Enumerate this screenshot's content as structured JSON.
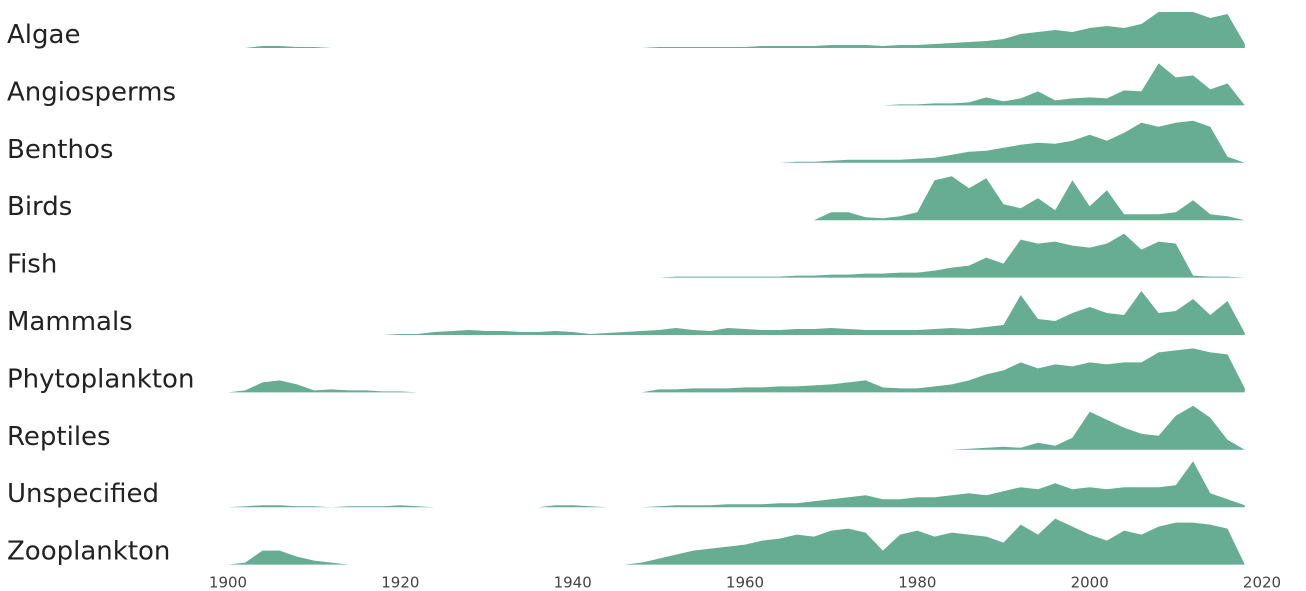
{
  "chart_data": {
    "type": "ridgeline",
    "color": "#66ad93",
    "xlim": [
      1900,
      2020
    ],
    "xticks": [
      1900,
      1920,
      1940,
      1960,
      1980,
      2000,
      2020
    ],
    "ylim": [
      0,
      50
    ],
    "x": [
      1898,
      1900,
      1902,
      1904,
      1906,
      1908,
      1910,
      1912,
      1914,
      1916,
      1918,
      1920,
      1922,
      1924,
      1926,
      1928,
      1930,
      1932,
      1934,
      1936,
      1938,
      1940,
      1942,
      1944,
      1946,
      1948,
      1950,
      1952,
      1954,
      1956,
      1958,
      1960,
      1962,
      1964,
      1966,
      1968,
      1970,
      1972,
      1974,
      1976,
      1978,
      1980,
      1982,
      1984,
      1986,
      1988,
      1990,
      1992,
      1994,
      1996,
      1998,
      2000,
      2002,
      2004,
      2006,
      2008,
      2010,
      2012,
      2014,
      2016,
      2018
    ],
    "series": [
      {
        "name": "Algae",
        "values": [
          0,
          0,
          0,
          2,
          2,
          1,
          1,
          0,
          0,
          0,
          0,
          0,
          0,
          0,
          0,
          0,
          0,
          0,
          0,
          0,
          0,
          0,
          0,
          0,
          0,
          0,
          1,
          1,
          1,
          1,
          1,
          1,
          2,
          2,
          2,
          2,
          3,
          3,
          3,
          2,
          3,
          3,
          4,
          5,
          6,
          7,
          9,
          14,
          16,
          18,
          16,
          20,
          22,
          20,
          24,
          36,
          36,
          36,
          30,
          34,
          4
        ]
      },
      {
        "name": "Angiosperms",
        "values": [
          0,
          0,
          0,
          0,
          0,
          0,
          0,
          0,
          0,
          0,
          0,
          0,
          0,
          0,
          0,
          0,
          0,
          0,
          0,
          0,
          0,
          0,
          0,
          0,
          0,
          0,
          0,
          0,
          0,
          0,
          0,
          0,
          0,
          0,
          0,
          0,
          0,
          0,
          0,
          0,
          1,
          1,
          2,
          2,
          3,
          8,
          4,
          7,
          14,
          5,
          7,
          8,
          7,
          15,
          14,
          42,
          28,
          30,
          16,
          22,
          0
        ]
      },
      {
        "name": "Benthos",
        "values": [
          0,
          0,
          0,
          0,
          0,
          0,
          0,
          0,
          0,
          0,
          0,
          0,
          0,
          0,
          0,
          0,
          0,
          0,
          0,
          0,
          0,
          0,
          0,
          0,
          0,
          0,
          0,
          0,
          0,
          0,
          0,
          0,
          0,
          0,
          1,
          1,
          2,
          3,
          3,
          3,
          3,
          4,
          5,
          8,
          11,
          12,
          15,
          18,
          20,
          19,
          22,
          28,
          22,
          30,
          40,
          36,
          40,
          42,
          36,
          6,
          0
        ]
      },
      {
        "name": "Birds",
        "values": [
          0,
          0,
          0,
          0,
          0,
          0,
          0,
          0,
          0,
          0,
          0,
          0,
          0,
          0,
          0,
          0,
          0,
          0,
          0,
          0,
          0,
          0,
          0,
          0,
          0,
          0,
          0,
          0,
          0,
          0,
          0,
          0,
          0,
          0,
          0,
          0,
          8,
          8,
          3,
          2,
          4,
          8,
          40,
          44,
          32,
          42,
          16,
          12,
          22,
          10,
          40,
          14,
          30,
          6,
          6,
          6,
          8,
          20,
          6,
          4,
          0
        ]
      },
      {
        "name": "Fish",
        "values": [
          0,
          0,
          0,
          0,
          0,
          0,
          0,
          0,
          0,
          0,
          0,
          0,
          0,
          0,
          0,
          0,
          0,
          0,
          0,
          0,
          0,
          0,
          0,
          0,
          0,
          0,
          0,
          1,
          1,
          1,
          1,
          1,
          1,
          1,
          2,
          2,
          3,
          3,
          4,
          4,
          5,
          5,
          7,
          10,
          12,
          20,
          14,
          38,
          34,
          36,
          32,
          30,
          34,
          44,
          28,
          36,
          34,
          2,
          1,
          1,
          0
        ]
      },
      {
        "name": "Mammals",
        "values": [
          0,
          0,
          0,
          0,
          0,
          0,
          0,
          0,
          0,
          0,
          0,
          1,
          1,
          3,
          4,
          5,
          4,
          4,
          3,
          3,
          4,
          3,
          1,
          2,
          3,
          4,
          5,
          7,
          5,
          4,
          7,
          6,
          5,
          5,
          6,
          6,
          7,
          6,
          5,
          5,
          5,
          5,
          6,
          7,
          6,
          8,
          10,
          40,
          16,
          14,
          22,
          28,
          22,
          20,
          44,
          22,
          24,
          36,
          20,
          34,
          2
        ]
      },
      {
        "name": "Phytoplankton",
        "values": [
          0,
          0,
          2,
          10,
          12,
          8,
          2,
          3,
          2,
          2,
          1,
          1,
          0,
          0,
          0,
          0,
          0,
          0,
          0,
          0,
          0,
          0,
          0,
          0,
          0,
          0,
          3,
          3,
          4,
          4,
          4,
          5,
          5,
          6,
          6,
          7,
          8,
          10,
          12,
          5,
          4,
          4,
          6,
          8,
          12,
          18,
          22,
          30,
          24,
          28,
          26,
          30,
          28,
          30,
          30,
          40,
          42,
          44,
          40,
          38,
          4
        ]
      },
      {
        "name": "Reptiles",
        "values": [
          0,
          0,
          0,
          0,
          0,
          0,
          0,
          0,
          0,
          0,
          0,
          0,
          0,
          0,
          0,
          0,
          0,
          0,
          0,
          0,
          0,
          0,
          0,
          0,
          0,
          0,
          0,
          0,
          0,
          0,
          0,
          0,
          0,
          0,
          0,
          0,
          0,
          0,
          0,
          0,
          0,
          0,
          0,
          0,
          1,
          2,
          3,
          2,
          7,
          4,
          12,
          38,
          30,
          22,
          16,
          14,
          34,
          44,
          32,
          10,
          0
        ]
      },
      {
        "name": "Unspecified",
        "values": [
          0,
          0,
          1,
          2,
          2,
          1,
          1,
          0,
          1,
          1,
          1,
          2,
          1,
          0,
          0,
          0,
          0,
          0,
          0,
          0,
          2,
          2,
          1,
          0,
          0,
          0,
          1,
          2,
          2,
          2,
          3,
          3,
          3,
          4,
          4,
          6,
          8,
          10,
          12,
          8,
          8,
          10,
          10,
          12,
          14,
          12,
          16,
          20,
          18,
          24,
          18,
          20,
          18,
          20,
          20,
          20,
          22,
          46,
          14,
          8,
          2
        ]
      },
      {
        "name": "Zooplankton",
        "values": [
          0,
          0,
          2,
          14,
          14,
          8,
          4,
          2,
          0,
          0,
          0,
          0,
          0,
          0,
          0,
          0,
          0,
          0,
          0,
          0,
          0,
          0,
          0,
          0,
          0,
          2,
          6,
          10,
          14,
          16,
          18,
          20,
          24,
          26,
          30,
          28,
          34,
          36,
          32,
          14,
          30,
          34,
          28,
          32,
          30,
          28,
          22,
          40,
          30,
          46,
          38,
          30,
          24,
          34,
          30,
          38,
          42,
          42,
          40,
          36,
          0
        ]
      }
    ]
  }
}
